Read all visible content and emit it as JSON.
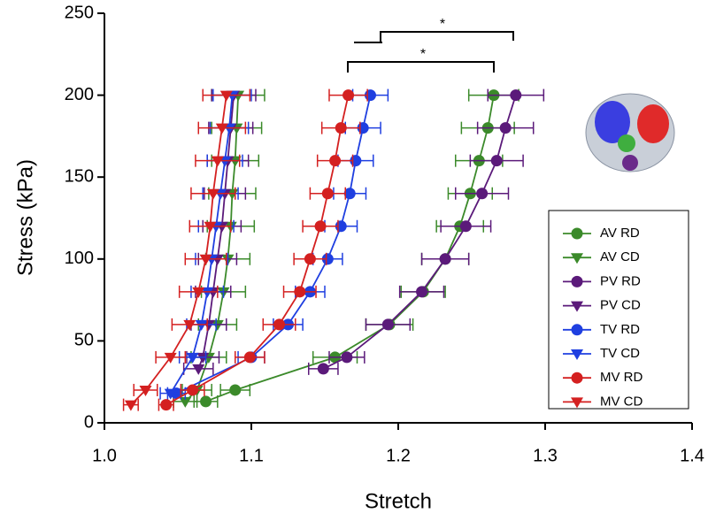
{
  "chart_data": {
    "type": "line",
    "x_label": "Stretch",
    "y_label": "Stress (kPa)",
    "xlim": [
      1.0,
      1.4
    ],
    "ylim": [
      0,
      250
    ],
    "xticks": [
      {
        "value": 1.0,
        "label": "1.0"
      },
      1.1,
      1.2,
      1.3,
      1.4
    ],
    "yticks": [
      0,
      50,
      100,
      150,
      200,
      250
    ],
    "grid": false,
    "legend": "lower right",
    "annotations": [
      "*",
      "*"
    ],
    "series": [
      {
        "name": "AV RD",
        "color": "#3b8a2a",
        "marker": "circle",
        "x": [
          1.265,
          1.261,
          1.255,
          1.249,
          1.242,
          1.232,
          1.217,
          1.194,
          1.157,
          1.089,
          1.069
        ],
        "y": [
          200,
          180,
          160,
          140,
          120,
          100,
          80,
          60,
          40,
          20,
          13
        ],
        "xerr": [
          0.017,
          0.018,
          0.016,
          0.015,
          0.016,
          0.016,
          0.015,
          0.016,
          0.015,
          0.01,
          0.008
        ]
      },
      {
        "name": "AV CD",
        "color": "#3b8a2a",
        "marker": "triangle",
        "x": [
          1.091,
          1.09,
          1.089,
          1.087,
          1.086,
          1.084,
          1.081,
          1.077,
          1.071,
          1.063,
          1.055
        ],
        "y": [
          200,
          180,
          160,
          140,
          120,
          100,
          80,
          60,
          40,
          20,
          13
        ],
        "xerr": [
          0.018,
          0.017,
          0.016,
          0.016,
          0.016,
          0.015,
          0.015,
          0.013,
          0.012,
          0.01,
          0.008
        ]
      },
      {
        "name": "PV RD",
        "color": "#5b1a7a",
        "marker": "circle",
        "x": [
          1.28,
          1.273,
          1.267,
          1.257,
          1.246,
          1.232,
          1.216,
          1.193,
          1.165,
          1.149
        ],
        "y": [
          200,
          180,
          160,
          140,
          120,
          100,
          80,
          60,
          40,
          33
        ],
        "xerr": [
          0.019,
          0.019,
          0.018,
          0.018,
          0.017,
          0.016,
          0.015,
          0.015,
          0.012,
          0.01
        ]
      },
      {
        "name": "PV CD",
        "color": "#5b1a7a",
        "marker": "triangle",
        "x": [
          1.088,
          1.086,
          1.084,
          1.082,
          1.08,
          1.077,
          1.074,
          1.071,
          1.067,
          1.064
        ],
        "y": [
          200,
          180,
          160,
          140,
          120,
          100,
          80,
          60,
          40,
          33
        ],
        "xerr": [
          0.015,
          0.015,
          0.014,
          0.014,
          0.013,
          0.013,
          0.012,
          0.012,
          0.011,
          0.01
        ]
      },
      {
        "name": "TV RD",
        "color": "#1f3fe0",
        "marker": "circle",
        "x": [
          1.181,
          1.176,
          1.171,
          1.167,
          1.161,
          1.152,
          1.14,
          1.125,
          1.1,
          1.049
        ],
        "y": [
          200,
          180,
          160,
          140,
          120,
          100,
          80,
          60,
          40,
          18
        ],
        "xerr": [
          0.012,
          0.012,
          0.012,
          0.011,
          0.011,
          0.01,
          0.01,
          0.01,
          0.009,
          0.006
        ]
      },
      {
        "name": "TV CD",
        "color": "#1f3fe0",
        "marker": "triangle",
        "x": [
          1.087,
          1.085,
          1.082,
          1.079,
          1.076,
          1.073,
          1.07,
          1.066,
          1.06,
          1.045
        ],
        "y": [
          200,
          180,
          160,
          140,
          120,
          100,
          80,
          60,
          40,
          18
        ],
        "xerr": [
          0.013,
          0.013,
          0.012,
          0.012,
          0.012,
          0.011,
          0.011,
          0.01,
          0.009,
          0.007
        ]
      },
      {
        "name": "MV RD",
        "color": "#d42020",
        "marker": "circle",
        "x": [
          1.166,
          1.161,
          1.157,
          1.152,
          1.147,
          1.14,
          1.133,
          1.119,
          1.099,
          1.06,
          1.042
        ],
        "y": [
          200,
          180,
          160,
          140,
          120,
          100,
          80,
          60,
          40,
          20,
          11
        ],
        "xerr": [
          0.013,
          0.013,
          0.012,
          0.012,
          0.012,
          0.011,
          0.011,
          0.011,
          0.01,
          0.008,
          0.005
        ]
      },
      {
        "name": "MV CD",
        "color": "#d42020",
        "marker": "triangle",
        "x": [
          1.083,
          1.08,
          1.077,
          1.074,
          1.072,
          1.069,
          1.064,
          1.058,
          1.045,
          1.028,
          1.018
        ],
        "y": [
          200,
          180,
          160,
          140,
          120,
          100,
          80,
          60,
          40,
          20,
          11
        ],
        "xerr": [
          0.016,
          0.016,
          0.015,
          0.015,
          0.014,
          0.014,
          0.013,
          0.012,
          0.01,
          0.008,
          0.005
        ]
      }
    ]
  }
}
